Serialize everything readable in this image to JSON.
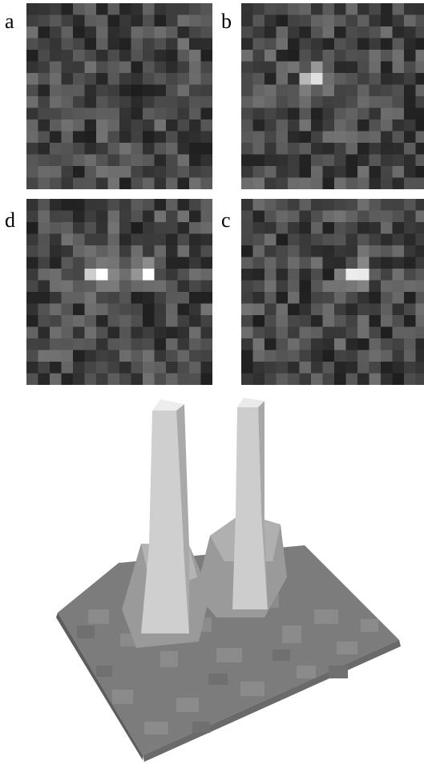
{
  "panels": {
    "a": {
      "label": "a",
      "grid": 16,
      "spots": [],
      "seed": 11
    },
    "b": {
      "label": "b",
      "grid": 16,
      "spots": [
        [
          5.8,
          6.0,
          1.0
        ]
      ],
      "seed": 23
    },
    "d": {
      "label": "d",
      "grid": 16,
      "spots": [
        [
          5.8,
          6.0,
          1.0
        ],
        [
          9.8,
          6.0,
          1.0
        ]
      ],
      "seed": 37
    },
    "c": {
      "label": "c",
      "grid": 16,
      "spots": [
        [
          9.6,
          6.0,
          1.0
        ]
      ],
      "seed": 51
    }
  },
  "colors": {
    "background": "#ffffff",
    "label": "#000000",
    "surface_light": "#e6e6e6",
    "surface_dark": "#6a6a6a"
  }
}
